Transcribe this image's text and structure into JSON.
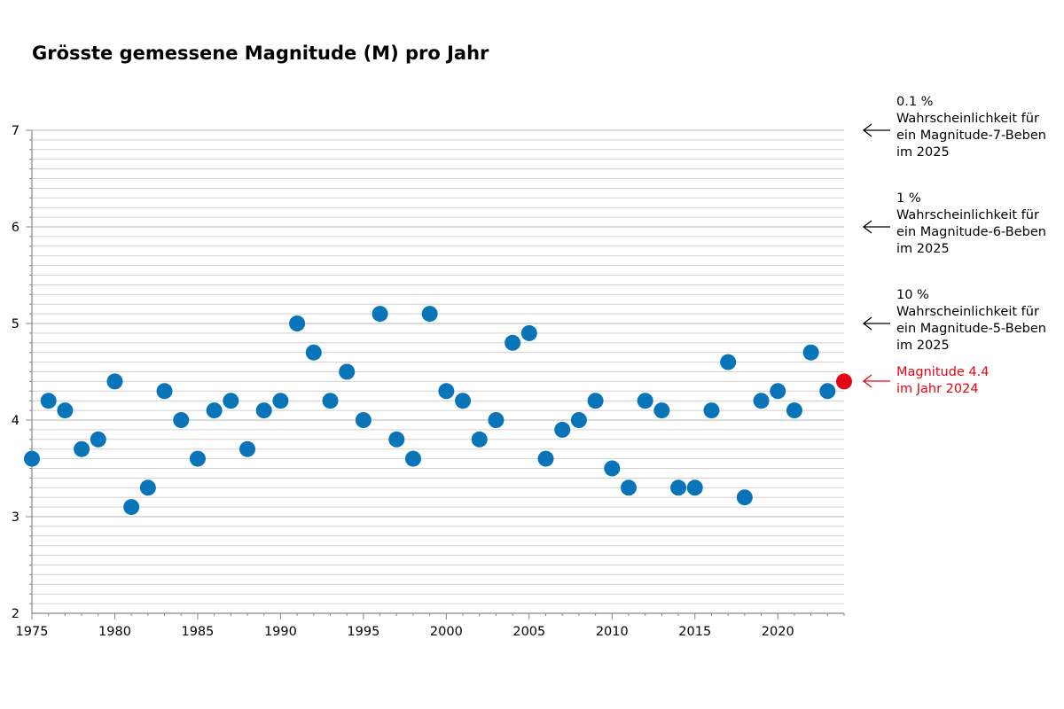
{
  "chart_data": {
    "type": "scatter",
    "title": "Grösste gemessene Magnitude (M) pro Jahr",
    "xlabel": "",
    "ylabel": "",
    "xlim": [
      1975,
      2024
    ],
    "ylim": [
      2,
      7
    ],
    "x_ticks": [
      1975,
      1980,
      1985,
      1990,
      1995,
      2000,
      2005,
      2010,
      2015,
      2020
    ],
    "y_ticks": [
      2,
      3,
      4,
      5,
      6,
      7
    ],
    "minor_grid_step": 0.1,
    "grid": true,
    "colors": {
      "points": "#0a74b9",
      "highlight": "#e30613",
      "grid": "#d0d0d0"
    },
    "series": [
      {
        "x": [
          1975,
          1976,
          1977,
          1978,
          1979,
          1980,
          1981,
          1982,
          1983,
          1984,
          1985,
          1986,
          1987,
          1988,
          1989,
          1990,
          1991,
          1992,
          1993,
          1994,
          1995,
          1996,
          1997,
          1998,
          1999,
          2000,
          2001,
          2002,
          2003,
          2004,
          2005,
          2006,
          2007,
          2008,
          2009,
          2010,
          2011,
          2012,
          2013,
          2014,
          2015,
          2016,
          2017,
          2018,
          2019,
          2020,
          2021,
          2022,
          2023
        ],
        "y": [
          3.6,
          4.2,
          4.1,
          3.7,
          3.8,
          4.4,
          3.1,
          3.3,
          4.3,
          4.0,
          3.6,
          4.1,
          4.2,
          3.7,
          4.1,
          4.2,
          5.0,
          4.7,
          4.2,
          4.5,
          4.0,
          5.1,
          3.8,
          3.6,
          5.1,
          4.3,
          4.2,
          3.8,
          4.0,
          4.8,
          4.9,
          3.6,
          3.9,
          4.0,
          4.2,
          3.5,
          3.3,
          4.2,
          4.1,
          3.3,
          3.3,
          4.1,
          4.6,
          3.2,
          4.2,
          4.3,
          4.1,
          4.7,
          4.3
        ]
      }
    ],
    "highlight_point": {
      "x": 2024,
      "y": 4.4
    },
    "annotations": [
      {
        "lines": [
          "0.1 %",
          "Wahrscheinlichkeit für",
          "ein Magnitude-7-Beben",
          "im 2025"
        ],
        "y": 7,
        "color": "#000000"
      },
      {
        "lines": [
          "1 %",
          "Wahrscheinlichkeit für",
          "ein Magnitude-6-Beben",
          "im 2025"
        ],
        "y": 6,
        "color": "#000000"
      },
      {
        "lines": [
          "10 %",
          "Wahrscheinlichkeit für",
          "ein Magnitude-5-Beben",
          "im 2025"
        ],
        "y": 5,
        "color": "#000000"
      },
      {
        "lines": [
          "Magnitude 4.4",
          "im Jahr 2024"
        ],
        "y": 4.4,
        "color": "#e30613"
      }
    ]
  }
}
